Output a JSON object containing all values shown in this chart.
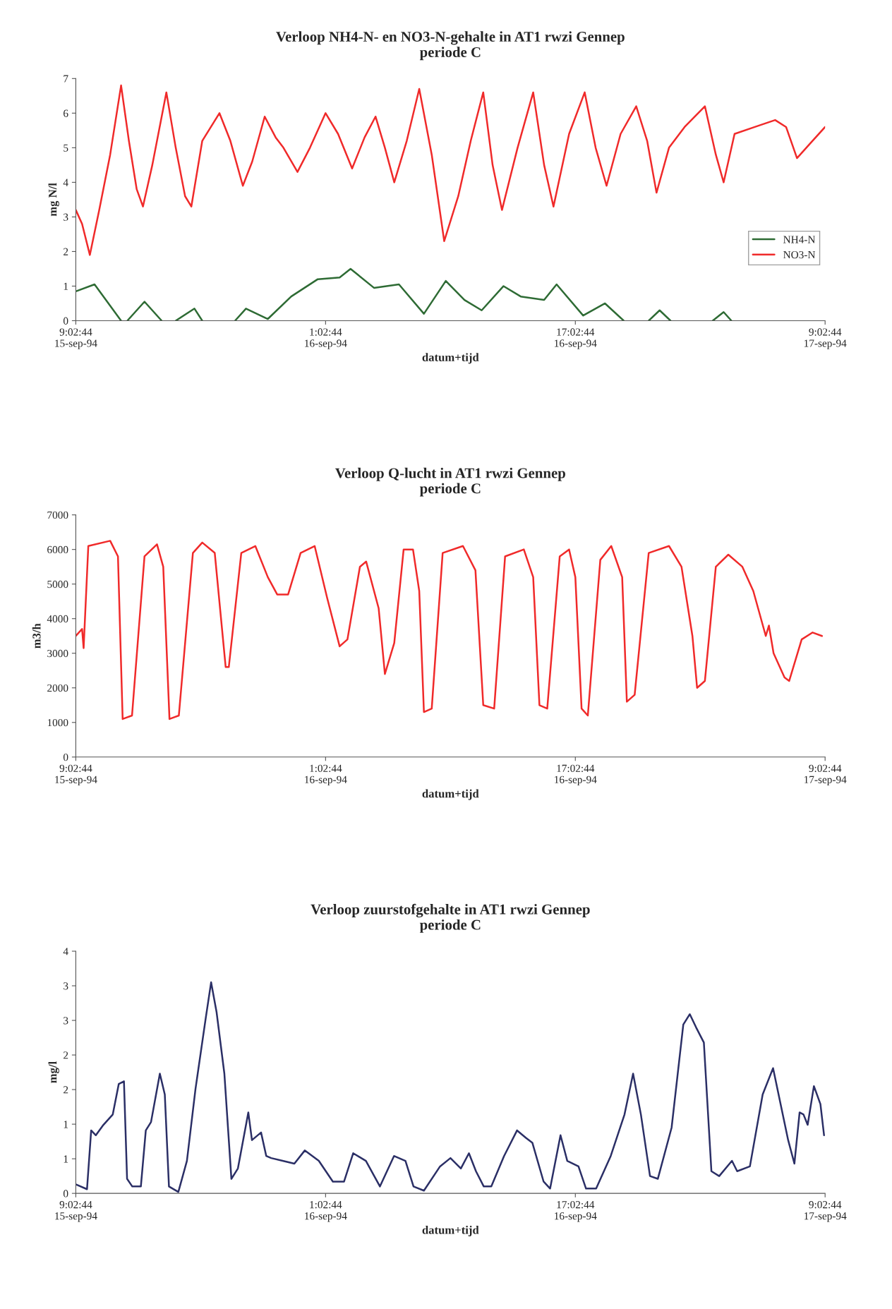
{
  "chart_data": [
    {
      "type": "line",
      "title": "Verloop NH4-N- en NO3-N-gehalte in AT1 rwzi Gennep",
      "subtitle": "periode C",
      "xlabel": "datum+tijd",
      "ylabel": "mg N/l",
      "xlim": [
        "1994-09-15T09:02",
        "1994-09-17T09:02"
      ],
      "xticks": [
        {
          "value": "1994-09-15T09:02",
          "label": "9:02:44\n15-sep-94"
        },
        {
          "value": "1994-09-16T01:02",
          "label": "1:02:44\n16-sep-94"
        },
        {
          "value": "1994-09-16T17:02",
          "label": "17:02:44\n16-sep-94"
        },
        {
          "value": "1994-09-17T09:02",
          "label": "9:02:44\n17-sep-94"
        }
      ],
      "ylim": [
        0,
        7
      ],
      "yticks": [
        0,
        1,
        2,
        3,
        4,
        5,
        6,
        7
      ],
      "grid": false,
      "legend": "right",
      "series": [
        {
          "name": "NH4-N",
          "color": "#2e6b34",
          "x": [
            "1994-09-15T09:02",
            "1994-09-15T10:14",
            "1994-09-15T11:56",
            "1994-09-15T12:08",
            "1994-09-15T12:20",
            "1994-09-15T13:26",
            "1994-09-15T14:32",
            "1994-09-15T14:56",
            "1994-09-15T15:26",
            "1994-09-15T16:38",
            "1994-09-15T17:08",
            "1994-09-15T18:14",
            "1994-09-15T19:14",
            "1994-09-15T19:56",
            "1994-09-15T21:20",
            "1994-09-15T22:50",
            "1994-09-16T00:32",
            "1994-09-16T01:56",
            "1994-09-16T02:38",
            "1994-09-16T04:08",
            "1994-09-16T05:44",
            "1994-09-16T07:20",
            "1994-09-16T08:44",
            "1994-09-16T09:56",
            "1994-09-16T11:02",
            "1994-09-16T12:26",
            "1994-09-16T13:32",
            "1994-09-16T15:02",
            "1994-09-16T15:50",
            "1994-09-16T17:32",
            "1994-09-16T18:56",
            "1994-09-16T20:08",
            "1994-09-16T20:56",
            "1994-09-16T21:44",
            "1994-09-16T22:26",
            "1994-09-16T23:08",
            "1994-09-17T00:32",
            "1994-09-17T01:50",
            "1994-09-17T02:32",
            "1994-09-17T03:02"
          ],
          "values": [
            0.85,
            1.05,
            0,
            null,
            0,
            0.55,
            0,
            null,
            0,
            0.35,
            0,
            null,
            0,
            0.35,
            0.05,
            0.7,
            1.2,
            1.25,
            1.5,
            0.95,
            1.05,
            0.2,
            1.15,
            0.6,
            0.3,
            1.0,
            0.7,
            0.6,
            1.05,
            0.15,
            0.5,
            0,
            null,
            0,
            0.3,
            0,
            null,
            0,
            0.25,
            0
          ]
        },
        {
          "name": "NO3-N",
          "color": "#f02a2a",
          "x": [
            "1994-09-15T09:02",
            "1994-09-15T09:26",
            "1994-09-15T09:56",
            "1994-09-15T10:32",
            "1994-09-15T11:14",
            "1994-09-15T11:56",
            "1994-09-15T12:26",
            "1994-09-15T12:56",
            "1994-09-15T13:20",
            "1994-09-15T13:56",
            "1994-09-15T14:50",
            "1994-09-15T15:26",
            "1994-09-15T16:02",
            "1994-09-15T16:26",
            "1994-09-15T17:08",
            "1994-09-15T18:14",
            "1994-09-15T18:56",
            "1994-09-15T19:44",
            "1994-09-15T20:20",
            "1994-09-15T21:08",
            "1994-09-15T21:50",
            "1994-09-15T22:20",
            "1994-09-15T23:14",
            "1994-09-16T00:02",
            "1994-09-16T01:02",
            "1994-09-16T01:50",
            "1994-09-16T02:44",
            "1994-09-16T03:32",
            "1994-09-16T04:14",
            "1994-09-16T04:50",
            "1994-09-16T05:26",
            "1994-09-16T06:14",
            "1994-09-16T07:02",
            "1994-09-16T07:50",
            "1994-09-16T08:38",
            "1994-09-16T09:32",
            "1994-09-16T10:20",
            "1994-09-16T11:08",
            "1994-09-16T11:44",
            "1994-09-16T12:20",
            "1994-09-16T13:20",
            "1994-09-16T14:20",
            "1994-09-16T15:02",
            "1994-09-16T15:38",
            "1994-09-16T16:38",
            "1994-09-16T17:38",
            "1994-09-16T18:20",
            "1994-09-16T19:02",
            "1994-09-16T19:56",
            "1994-09-16T20:56",
            "1994-09-16T21:38",
            "1994-09-16T22:14",
            "1994-09-16T23:02",
            "1994-09-17T00:02",
            "1994-09-17T01:20",
            "1994-09-17T02:02",
            "1994-09-17T02:32",
            "1994-09-17T03:14",
            "1994-09-17T04:32",
            "1994-09-17T05:50",
            "1994-09-17T06:32",
            "1994-09-17T07:14",
            "1994-09-17T08:02",
            "1994-09-17T09:02"
          ],
          "values": [
            3.2,
            2.8,
            1.9,
            3.2,
            4.8,
            6.8,
            5.2,
            3.8,
            3.3,
            4.5,
            6.6,
            5.0,
            3.6,
            3.3,
            5.2,
            6.0,
            5.2,
            3.9,
            4.6,
            5.9,
            5.3,
            5.0,
            4.3,
            5.0,
            6.0,
            5.4,
            4.4,
            5.3,
            5.9,
            5.0,
            4.0,
            5.2,
            6.7,
            4.8,
            2.3,
            3.6,
            5.2,
            6.6,
            4.5,
            3.2,
            5.0,
            6.6,
            4.5,
            3.3,
            5.4,
            6.6,
            5.0,
            3.9,
            5.4,
            6.2,
            5.2,
            3.7,
            5.0,
            5.6,
            6.2,
            4.8,
            4.0,
            5.4,
            5.6,
            5.8,
            5.6,
            4.7,
            5.1,
            5.6
          ]
        }
      ]
    },
    {
      "type": "line",
      "title": "Verloop Q-lucht in AT1 rwzi Gennep",
      "subtitle": "periode C",
      "xlabel": "datum+tijd",
      "ylabel": "m3/h",
      "xlim": [
        "1994-09-15T09:02",
        "1994-09-17T09:02"
      ],
      "xticks": [
        {
          "value": "1994-09-15T09:02",
          "label": "9:02:44\n15-sep-94"
        },
        {
          "value": "1994-09-16T01:02",
          "label": "1:02:44\n16-sep-94"
        },
        {
          "value": "1994-09-16T17:02",
          "label": "17:02:44\n16-sep-94"
        },
        {
          "value": "1994-09-17T09:02",
          "label": "9:02:44\n17-sep-94"
        }
      ],
      "ylim": [
        0,
        7000
      ],
      "yticks": [
        0,
        1000,
        2000,
        3000,
        4000,
        5000,
        6000,
        7000
      ],
      "grid": false,
      "series": [
        {
          "color": "#f02a2a",
          "x": [
            "1994-09-15T09:02",
            "1994-09-15T09:26",
            "1994-09-15T09:32",
            "1994-09-15T09:50",
            "1994-09-15T11:14",
            "1994-09-15T11:44",
            "1994-09-15T12:02",
            "1994-09-15T12:38",
            "1994-09-15T13:26",
            "1994-09-15T14:14",
            "1994-09-15T14:38",
            "1994-09-15T15:02",
            "1994-09-15T15:38",
            "1994-09-15T16:32",
            "1994-09-15T17:08",
            "1994-09-15T17:56",
            "1994-09-15T18:38",
            "1994-09-15T18:50",
            "1994-09-15T19:38",
            "1994-09-15T20:32",
            "1994-09-15T21:20",
            "1994-09-15T21:56",
            "1994-09-15T22:38",
            "1994-09-15T23:26",
            "1994-09-16T00:20",
            "1994-09-16T01:08",
            "1994-09-16T01:56",
            "1994-09-16T02:26",
            "1994-09-16T03:14",
            "1994-09-16T03:38",
            "1994-09-16T04:26",
            "1994-09-16T04:50",
            "1994-09-16T05:26",
            "1994-09-16T06:02",
            "1994-09-16T06:38",
            "1994-09-16T07:02",
            "1994-09-16T07:20",
            "1994-09-16T07:50",
            "1994-09-16T08:32",
            "1994-09-16T09:50",
            "1994-09-16T10:38",
            "1994-09-16T11:08",
            "1994-09-16T11:50",
            "1994-09-16T12:32",
            "1994-09-16T13:44",
            "1994-09-16T14:20",
            "1994-09-16T14:44",
            "1994-09-16T15:14",
            "1994-09-16T16:02",
            "1994-09-16T16:38",
            "1994-09-16T17:02",
            "1994-09-16T17:26",
            "1994-09-16T17:50",
            "1994-09-16T18:38",
            "1994-09-16T19:20",
            "1994-09-16T20:02",
            "1994-09-16T20:20",
            "1994-09-16T20:50",
            "1994-09-16T21:44",
            "1994-09-16T23:02",
            "1994-09-16T23:50",
            "1994-09-17T00:32",
            "1994-09-17T00:50",
            "1994-09-17T01:20",
            "1994-09-17T02:02",
            "1994-09-17T02:50",
            "1994-09-17T03:44",
            "1994-09-17T04:26",
            "1994-09-17T05:14",
            "1994-09-17T05:26",
            "1994-09-17T05:44",
            "1994-09-17T06:26",
            "1994-09-17T06:44",
            "1994-09-17T07:32",
            "1994-09-17T08:14",
            "1994-09-17T08:50"
          ],
          "values": [
            3500,
            3700,
            3150,
            6100,
            6250,
            5800,
            1100,
            1200,
            5800,
            6150,
            5500,
            1100,
            1200,
            5900,
            6200,
            5900,
            2600,
            2600,
            5900,
            6100,
            5200,
            4700,
            4700,
            5900,
            6100,
            4600,
            3200,
            3400,
            5500,
            5650,
            4300,
            2400,
            3300,
            6000,
            6000,
            4800,
            1300,
            1400,
            5900,
            6100,
            5400,
            1500,
            1400,
            5800,
            6000,
            5200,
            1500,
            1400,
            5800,
            6000,
            5200,
            1400,
            1200,
            5700,
            6100,
            5200,
            1600,
            1800,
            5900,
            6100,
            5500,
            3500,
            2000,
            2200,
            5500,
            5850,
            5500,
            4800,
            3500,
            3800,
            3000,
            2300,
            2200,
            3400,
            3600,
            3500
          ]
        }
      ]
    },
    {
      "type": "line",
      "title": "Verloop zuurstofgehalte in AT1 rwzi Gennep",
      "subtitle": "periode C",
      "xlabel": "datum+tijd",
      "ylabel": "mg/l",
      "xlim": [
        "1994-09-15T09:02",
        "1994-09-17T09:02"
      ],
      "xticks": [
        {
          "value": "1994-09-15T09:02",
          "label": "9:02:44\n15-sep-94"
        },
        {
          "value": "1994-09-16T01:02",
          "label": "1:02:44\n16-sep-94"
        },
        {
          "value": "1994-09-16T17:02",
          "label": "17:02:44\n16-sep-94"
        },
        {
          "value": "1994-09-17T09:02",
          "label": "9:02:44\n17-sep-94"
        }
      ],
      "ylim": [
        0,
        3.5
      ],
      "yticks": [
        0,
        {
          "value": 0.5,
          "label": "1"
        },
        1,
        {
          "value": 1.5,
          "label": "2"
        },
        2,
        {
          "value": 2.5,
          "label": "3"
        },
        3,
        {
          "value": 3.5,
          "label": "4"
        }
      ],
      "grid": false,
      "series": [
        {
          "color": "#2b2f66",
          "x": [
            "1994-09-15T09:02",
            "1994-09-15T09:45",
            "1994-09-15T10:01",
            "1994-09-15T10:19",
            "1994-09-15T10:48",
            "1994-09-15T11:24",
            "1994-09-15T11:47",
            "1994-09-15T12:07",
            "1994-09-15T12:19",
            "1994-09-15T12:39",
            "1994-09-15T13:12",
            "1994-09-15T13:31",
            "1994-09-15T13:51",
            "1994-09-15T14:25",
            "1994-09-15T14:44",
            "1994-09-15T15:00",
            "1994-09-15T15:36",
            "1994-09-15T16:09",
            "1994-09-15T16:42",
            "1994-09-15T17:22",
            "1994-09-15T17:42",
            "1994-09-15T18:03",
            "1994-09-15T18:33",
            "1994-09-15T19:00",
            "1994-09-15T19:25",
            "1994-09-15T20:05",
            "1994-09-15T20:19",
            "1994-09-15T20:54",
            "1994-09-15T21:14",
            "1994-09-15T21:33",
            "1994-09-15T22:17",
            "1994-09-15T23:02",
            "1994-09-15T23:42",
            "1994-09-16T00:36",
            "1994-09-16T01:30",
            "1994-09-16T02:13",
            "1994-09-16T02:48",
            "1994-09-16T03:37",
            "1994-09-16T04:31",
            "1994-09-16T05:25",
            "1994-09-16T06:09",
            "1994-09-16T06:40",
            "1994-09-16T07:20",
            "1994-09-16T08:22",
            "1994-09-16T09:02",
            "1994-09-16T09:42",
            "1994-09-16T10:13",
            "1994-09-16T10:40",
            "1994-09-16T11:10",
            "1994-09-16T11:39",
            "1994-09-16T12:28",
            "1994-09-16T13:18",
            "1994-09-16T13:53",
            "1994-09-16T14:17",
            "1994-09-16T15:00",
            "1994-09-16T15:25",
            "1994-09-16T16:05",
            "1994-09-16T16:31",
            "1994-09-16T17:14",
            "1994-09-16T17:43",
            "1994-09-16T18:22",
            "1994-09-16T19:18",
            "1994-09-16T20:11",
            "1994-09-16T20:44",
            "1994-09-16T21:14",
            "1994-09-16T21:49",
            "1994-09-16T22:19",
            "1994-09-16T23:12",
            "1994-09-16T23:57",
            "1994-09-17T00:22",
            "1994-09-17T00:46",
            "1994-09-17T01:16",
            "1994-09-17T01:45",
            "1994-09-17T02:15",
            "1994-09-17T03:04",
            "1994-09-17T03:24",
            "1994-09-17T04:13",
            "1994-09-17T05:02",
            "1994-09-17T05:42",
            "1994-09-17T06:11",
            "1994-09-17T06:40",
            "1994-09-17T07:04",
            "1994-09-17T07:24",
            "1994-09-17T07:39",
            "1994-09-17T07:55",
            "1994-09-17T08:19",
            "1994-09-17T08:44",
            "1994-09-17T08:58"
          ],
          "values": [
            0.13,
            0.06,
            0.91,
            0.84,
            0.99,
            1.14,
            1.58,
            1.62,
            0.21,
            0.1,
            0.1,
            0.91,
            1.03,
            1.73,
            1.43,
            0.1,
            0.02,
            0.47,
            1.51,
            2.55,
            3.05,
            2.62,
            1.73,
            0.21,
            0.36,
            1.17,
            0.77,
            0.88,
            0.54,
            0.51,
            0.47,
            0.43,
            0.62,
            0.47,
            0.17,
            0.17,
            0.58,
            0.47,
            0.1,
            0.54,
            0.47,
            0.1,
            0.04,
            0.39,
            0.51,
            0.36,
            0.58,
            0.32,
            0.1,
            0.1,
            0.54,
            0.91,
            0.8,
            0.73,
            0.17,
            0.07,
            0.84,
            0.47,
            0.39,
            0.07,
            0.07,
            0.54,
            1.14,
            1.73,
            1.14,
            0.25,
            0.21,
            0.95,
            2.44,
            2.59,
            2.4,
            2.18,
            0.32,
            0.25,
            0.47,
            0.32,
            0.39,
            1.43,
            1.81,
            1.29,
            0.77,
            0.43,
            1.17,
            1.14,
            0.99,
            1.55,
            1.29,
            0.84
          ]
        }
      ]
    }
  ]
}
